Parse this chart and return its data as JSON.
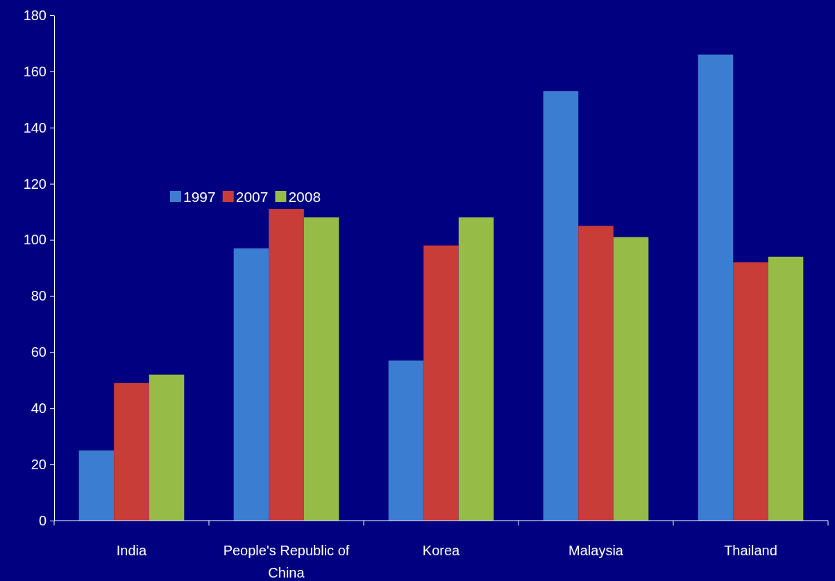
{
  "chart_data": {
    "type": "bar",
    "categories": [
      "India",
      "People's Republic of China",
      "Korea",
      "Malaysia",
      "Thailand"
    ],
    "series": [
      {
        "name": "1997",
        "color": "#3b7dd1",
        "values": [
          25,
          97,
          57,
          153,
          166
        ]
      },
      {
        "name": "2007",
        "color": "#c93d38",
        "values": [
          49,
          111,
          98,
          105,
          92
        ]
      },
      {
        "name": "2008",
        "color": "#96bb46",
        "values": [
          52,
          108,
          108,
          101,
          94
        ]
      }
    ],
    "ylim": [
      0,
      180
    ],
    "yticks": [
      0,
      20,
      40,
      60,
      80,
      100,
      120,
      140,
      160,
      180
    ],
    "legend": "left"
  }
}
